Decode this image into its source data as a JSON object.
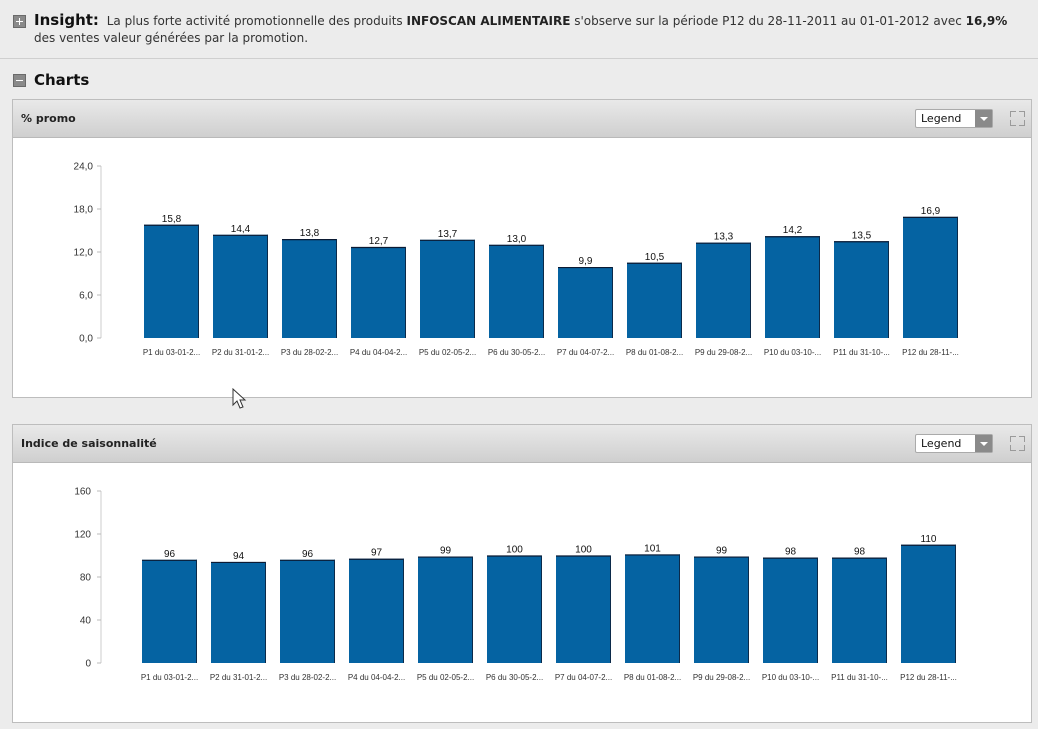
{
  "insight": {
    "heading": "Insight:",
    "text_1": "La plus forte activité promotionnelle des produits",
    "brand": "INFOSCAN ALIMENTAIRE",
    "text_2": "s'observe sur la période P12 du 28-11-2011 au 01-01-2012 avec",
    "value": "16,9%",
    "text_3": "des ventes valeur générées par la promotion."
  },
  "section": {
    "title": "Charts"
  },
  "legend_label": "Legend",
  "colors": {
    "bar": "#0563a2"
  },
  "chart_data": [
    {
      "type": "bar",
      "title": "% promo",
      "categories": [
        "P1 du 03-01-2...",
        "P2 du 31-01-2...",
        "P3 du 28-02-2...",
        "P4 du 04-04-2...",
        "P5 du 02-05-2...",
        "P6 du 30-05-2...",
        "P7 du 04-07-2...",
        "P8 du 01-08-2...",
        "P9 du 29-08-2...",
        "P10 du 03-10-...",
        "P11 du 31-10-...",
        "P12 du 28-11-..."
      ],
      "values": [
        15.8,
        14.4,
        13.8,
        12.7,
        13.7,
        13.0,
        9.9,
        10.5,
        13.3,
        14.2,
        13.5,
        16.9
      ],
      "value_labels": [
        "15,8",
        "14,4",
        "13,8",
        "12,7",
        "13,7",
        "13,0",
        "9,9",
        "10,5",
        "13,3",
        "14,2",
        "13,5",
        "16,9"
      ],
      "yticks": [
        0,
        6,
        12,
        18,
        24
      ],
      "ytick_labels": [
        "0,0",
        "6,0",
        "12,0",
        "18,0",
        "24,0"
      ],
      "ylim": [
        0,
        24
      ],
      "grid": false
    },
    {
      "type": "bar",
      "title": "Indice de saisonnalité",
      "categories": [
        "P1 du 03-01-2...",
        "P2 du 31-01-2...",
        "P3 du 28-02-2...",
        "P4 du 04-04-2...",
        "P5 du 02-05-2...",
        "P6 du 30-05-2...",
        "P7 du 04-07-2...",
        "P8 du 01-08-2...",
        "P9 du 29-08-2...",
        "P10 du 03-10-...",
        "P11 du 31-10-...",
        "P12 du 28-11-..."
      ],
      "values": [
        96,
        94,
        96,
        97,
        99,
        100,
        100,
        101,
        99,
        98,
        98,
        110
      ],
      "value_labels": [
        "96",
        "94",
        "96",
        "97",
        "99",
        "100",
        "100",
        "101",
        "99",
        "98",
        "98",
        "110"
      ],
      "yticks": [
        0,
        40,
        80,
        120,
        160
      ],
      "ytick_labels": [
        "0",
        "40",
        "80",
        "120",
        "160"
      ],
      "ylim": [
        0,
        160
      ],
      "grid": false
    }
  ]
}
